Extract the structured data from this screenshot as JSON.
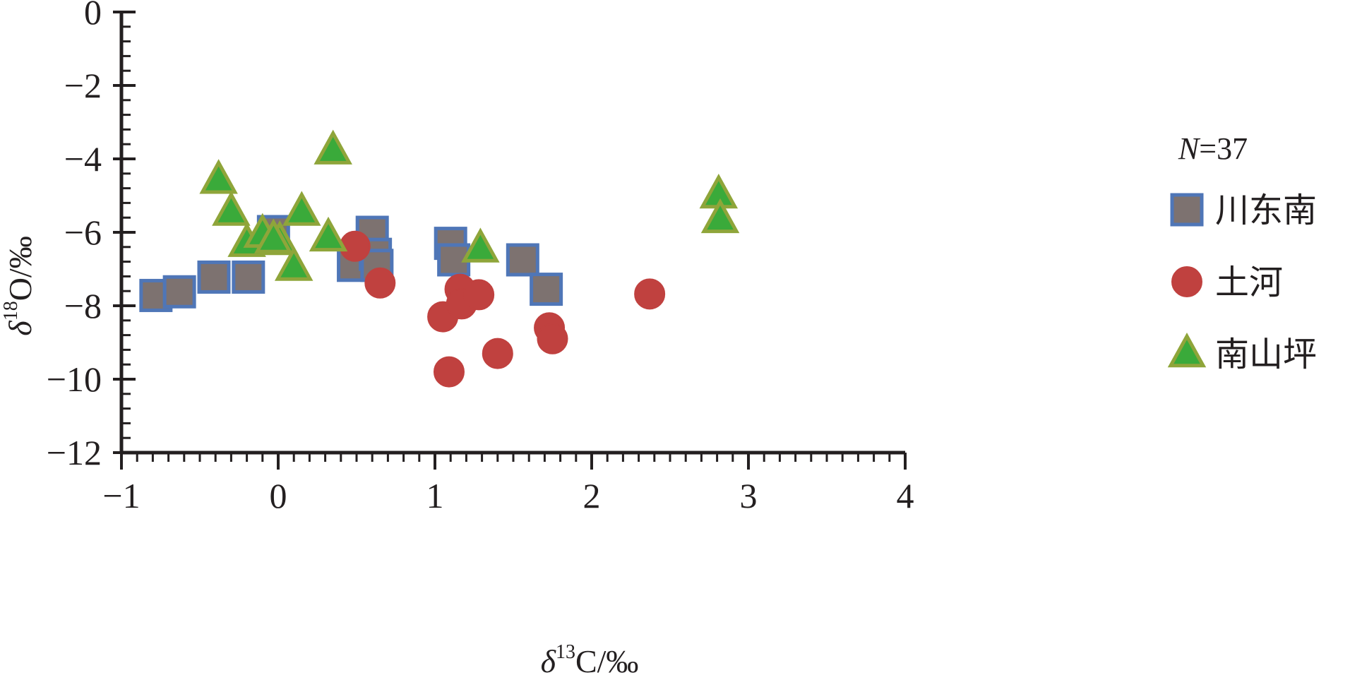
{
  "chart_data": {
    "type": "scatter",
    "x_axis": {
      "label_symbol": "δ",
      "label_sup": "13",
      "label_rest": "C/‰",
      "range": [
        -1,
        4
      ],
      "major_ticks": [
        -1,
        0,
        1,
        2,
        3,
        4
      ],
      "tick_labels": [
        "−1",
        "0",
        "1",
        "2",
        "3",
        "4"
      ],
      "minor_step": 0.1
    },
    "y_axis": {
      "label_symbol": "δ",
      "label_sup": "18",
      "label_rest": "O/‰",
      "range": [
        -12,
        0
      ],
      "major_ticks": [
        0,
        -2,
        -4,
        -6,
        -8,
        -10,
        -12
      ],
      "tick_labels": [
        "0",
        "−2",
        "−4",
        "−6",
        "−8",
        "−10",
        "−12"
      ],
      "minor_step": 0.4
    },
    "grid": false,
    "legend": {
      "position": "right",
      "note_italic": "N",
      "note_rest": "=37"
    },
    "series": [
      {
        "name": "川东南",
        "marker": "square",
        "fill": "#7d7270",
        "stroke": "#4f76b7",
        "points": [
          [
            -0.78,
            -7.72
          ],
          [
            -0.63,
            -7.62
          ],
          [
            -0.41,
            -7.22
          ],
          [
            -0.19,
            -7.22
          ],
          [
            -0.03,
            -5.98
          ],
          [
            0.48,
            -6.9
          ],
          [
            0.6,
            -6.0
          ],
          [
            0.62,
            -6.6
          ],
          [
            0.63,
            -6.9
          ],
          [
            1.1,
            -6.3
          ],
          [
            1.12,
            -6.75
          ],
          [
            1.56,
            -6.75
          ],
          [
            1.71,
            -7.55
          ]
        ]
      },
      {
        "name": "土河",
        "marker": "circle",
        "fill": "#c0413f",
        "stroke": "#c0413f",
        "points": [
          [
            0.49,
            -6.38
          ],
          [
            0.65,
            -7.38
          ],
          [
            1.05,
            -8.3
          ],
          [
            1.09,
            -9.8
          ],
          [
            1.16,
            -7.55
          ],
          [
            1.17,
            -7.95
          ],
          [
            1.28,
            -7.7
          ],
          [
            1.4,
            -9.3
          ],
          [
            1.73,
            -8.6
          ],
          [
            1.75,
            -8.9
          ],
          [
            2.37,
            -7.68
          ]
        ]
      },
      {
        "name": "南山坪",
        "marker": "triangle",
        "fill": "#3aaa3a",
        "stroke": "#8fa53a",
        "points": [
          [
            -0.38,
            -4.58
          ],
          [
            -0.3,
            -5.45
          ],
          [
            -0.2,
            -6.3
          ],
          [
            -0.1,
            -6.05
          ],
          [
            0.01,
            -6.25
          ],
          [
            0.1,
            -6.95
          ],
          [
            0.15,
            -5.45
          ],
          [
            0.32,
            -6.15
          ],
          [
            0.35,
            -3.78
          ],
          [
            1.29,
            -6.45
          ],
          [
            2.81,
            -4.98
          ],
          [
            2.82,
            -5.65
          ],
          [
            -0.03,
            -6.2
          ]
        ]
      }
    ]
  }
}
